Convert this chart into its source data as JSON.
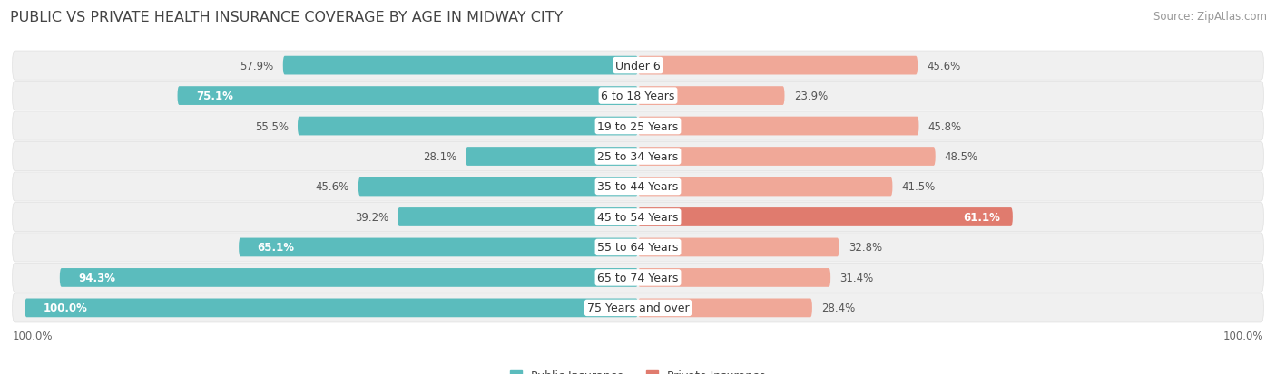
{
  "title": "PUBLIC VS PRIVATE HEALTH INSURANCE COVERAGE BY AGE IN MIDWAY CITY",
  "source": "Source: ZipAtlas.com",
  "categories": [
    "Under 6",
    "6 to 18 Years",
    "19 to 25 Years",
    "25 to 34 Years",
    "35 to 44 Years",
    "45 to 54 Years",
    "55 to 64 Years",
    "65 to 74 Years",
    "75 Years and over"
  ],
  "public_values": [
    57.9,
    75.1,
    55.5,
    28.1,
    45.6,
    39.2,
    65.1,
    94.3,
    100.0
  ],
  "private_values": [
    45.6,
    23.9,
    45.8,
    48.5,
    41.5,
    61.1,
    32.8,
    31.4,
    28.4
  ],
  "public_color": "#5bbcbd",
  "private_color_strong": "#e07b6e",
  "private_color_weak": "#f0a898",
  "private_threshold": 55.0,
  "bg_color": "#ffffff",
  "row_bg_color": "#f0f0f0",
  "row_border_color": "#e0e0e0",
  "label_bg_color": "#ffffff",
  "bar_height": 0.62,
  "xlim_left": -103,
  "xlim_right": 103,
  "title_fontsize": 11.5,
  "label_fontsize": 9.0,
  "value_fontsize": 8.5,
  "legend_fontsize": 9.0,
  "source_fontsize": 8.5,
  "pub_inside_threshold": 58,
  "priv_inside_threshold": 55
}
